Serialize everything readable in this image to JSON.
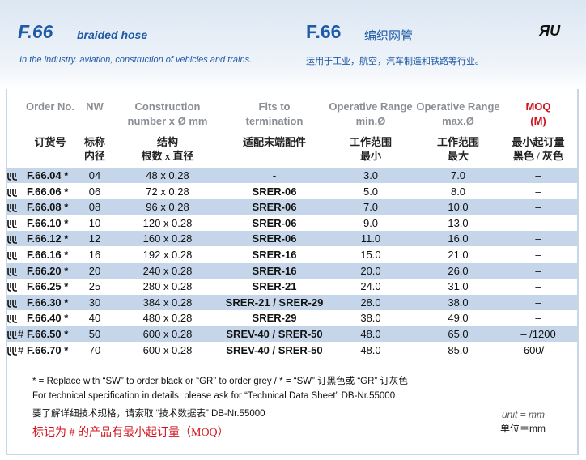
{
  "header": {
    "code": "F.66",
    "title_en": "braided hose",
    "title_cn": "编织网管",
    "subtitle_en": "In the industry. aviation, construction of vehicles and trains.",
    "subtitle_cn": "运用于工业，航空，汽车制造和铁路等行业。"
  },
  "table": {
    "header_en": [
      [
        "Order No."
      ],
      [
        "NW"
      ],
      [
        "Construction",
        "number x Ø mm"
      ],
      [
        "Fits to",
        "termination"
      ],
      [
        "Operative Range",
        "min.Ø"
      ],
      [
        "Operative Range",
        "max.Ø"
      ],
      [
        "MOQ",
        "(M)"
      ]
    ],
    "header_cn": [
      [
        "订货号"
      ],
      [
        "标称",
        "内径"
      ],
      [
        "结构",
        "根数 x 直径"
      ],
      [
        "适配末端配件"
      ],
      [
        "工作范围",
        "最小"
      ],
      [
        "工作范围",
        "最大"
      ],
      [
        "最小起订量",
        "黑色 / 灰色"
      ]
    ],
    "rows": [
      {
        "order": "F.66.04 *",
        "nw": "04",
        "construction": "48 x 0.28",
        "fits": "-",
        "min": "3.0",
        "max": "7.0",
        "moq": "–"
      },
      {
        "order": "F.66.06 *",
        "nw": "06",
        "construction": "72 x 0.28",
        "fits": "SRER-06",
        "min": "5.0",
        "max": "8.0",
        "moq": "–"
      },
      {
        "order": "F.66.08 *",
        "nw": "08",
        "construction": "96 x 0.28",
        "fits": "SRER-06",
        "min": "7.0",
        "max": "10.0",
        "moq": "–"
      },
      {
        "order": "F.66.10 *",
        "nw": "10",
        "construction": "120 x 0.28",
        "fits": "SRER-06",
        "min": "9.0",
        "max": "13.0",
        "moq": "–"
      },
      {
        "order": "F.66.12 *",
        "nw": "12",
        "construction": "160 x 0.28",
        "fits": "SRER-06",
        "min": "11.0",
        "max": "16.0",
        "moq": "–"
      },
      {
        "order": "F.66.16 *",
        "nw": "16",
        "construction": "192 x 0.28",
        "fits": "SRER-16",
        "min": "15.0",
        "max": "21.0",
        "moq": "–"
      },
      {
        "order": "F.66.20 *",
        "nw": "20",
        "construction": "240 x 0.28",
        "fits": "SRER-16",
        "min": "20.0",
        "max": "26.0",
        "moq": "–"
      },
      {
        "order": "F.66.25 *",
        "nw": "25",
        "construction": "280 x 0.28",
        "fits": "SRER-21",
        "min": "24.0",
        "max": "31.0",
        "moq": "–"
      },
      {
        "order": "F.66.30 *",
        "nw": "30",
        "construction": "384 x 0.28",
        "fits": "SRER-21 / SRER-29",
        "min": "28.0",
        "max": "38.0",
        "moq": "–"
      },
      {
        "order": "F.66.40 *",
        "nw": "40",
        "construction": "480 x 0.28",
        "fits": "SRER-29",
        "min": "38.0",
        "max": "49.0",
        "moq": "–"
      },
      {
        "mark": "#",
        "order": "F.66.50 *",
        "nw": "50",
        "construction": "600 x 0.28",
        "fits": "SREV-40 / SRER-50",
        "min": "48.0",
        "max": "65.0",
        "moq": "–  /1200"
      },
      {
        "mark": "#",
        "order": "F.66.70 *",
        "nw": "70",
        "construction": "600 x 0.28",
        "fits": "SREV-40 / SRER-50",
        "min": "48.0",
        "max": "85.0",
        "moq": "600/ –"
      }
    ]
  },
  "footnotes": [
    "* = Replace with “SW” to order black or “GR” to order grey / * = “SW” 订黑色或 “GR” 订灰色",
    "For technical specification in details,  please ask for “Technical Data Sheet” DB-Nr.55000",
    "要了解详细技术规格，请索取 “技术数据表” DB-Nr.55000",
    "标记为 # 的产品有最小起订量（MOQ）"
  ],
  "unit_en": "unit = mm",
  "unit_cn": "单位＝mm"
}
